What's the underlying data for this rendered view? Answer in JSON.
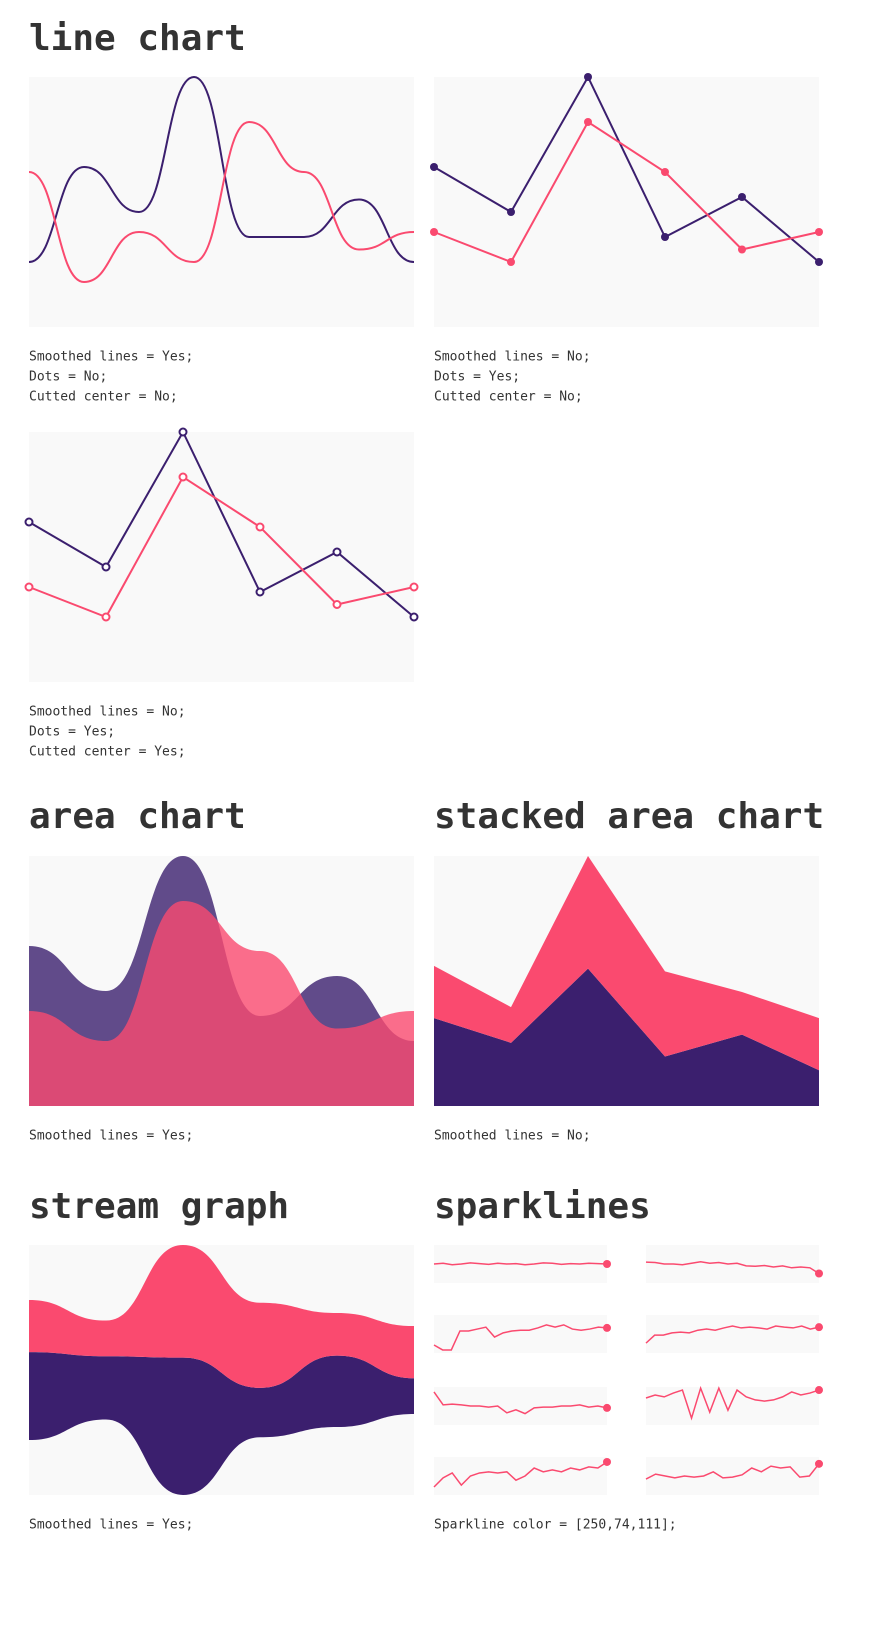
{
  "headings": [
    "line chart",
    "area chart",
    "stacked area chart",
    "stream graph",
    "sparklines"
  ],
  "sparklines_note": "Sparkline color = [250,74,111];",
  "chart_data": [
    {
      "type": "line",
      "smooth": true,
      "dots": "none",
      "x": [
        0,
        1,
        2,
        3,
        4,
        5,
        6,
        7
      ],
      "xlim": [
        0,
        7
      ],
      "ylim": [
        0,
        100
      ],
      "series": [
        {
          "color": "#3b1f6e",
          "values": [
            26,
            64,
            46,
            100,
            36,
            36,
            51,
            26
          ]
        },
        {
          "color": "#fa4a6f",
          "values": [
            62,
            18,
            38,
            26,
            82,
            62,
            31,
            38
          ]
        }
      ],
      "notes": [
        "Smoothed lines = Yes;",
        "Dots = No;",
        "Cutted center = No;"
      ]
    },
    {
      "type": "line",
      "smooth": false,
      "dots": "filled",
      "x": [
        0,
        1,
        2,
        3,
        4,
        5
      ],
      "xlim": [
        0,
        5
      ],
      "ylim": [
        0,
        100
      ],
      "series": [
        {
          "color": "#3b1f6e",
          "values": [
            64,
            46,
            100,
            36,
            52,
            26
          ]
        },
        {
          "color": "#fa4a6f",
          "values": [
            38,
            26,
            82,
            62,
            31,
            38
          ]
        }
      ],
      "notes": [
        "Smoothed lines = No;",
        "Dots = Yes;",
        "Cutted center = No;"
      ]
    },
    {
      "type": "line",
      "smooth": false,
      "dots": "hollow",
      "x": [
        0,
        1,
        2,
        3,
        4,
        5
      ],
      "xlim": [
        0,
        5
      ],
      "ylim": [
        0,
        100
      ],
      "series": [
        {
          "color": "#3b1f6e",
          "values": [
            64,
            46,
            100,
            36,
            52,
            26
          ]
        },
        {
          "color": "#fa4a6f",
          "values": [
            38,
            26,
            82,
            62,
            31,
            38
          ]
        }
      ],
      "notes": [
        "Smoothed lines = No;",
        "Dots = Yes;",
        "Cutted center = Yes;"
      ]
    },
    {
      "type": "area",
      "smooth": true,
      "stacked": false,
      "opacity": 0.8,
      "ylim": [
        0,
        100
      ],
      "series": [
        {
          "color": "#3b1f6e",
          "values": [
            64,
            46,
            100,
            36,
            52,
            26
          ]
        },
        {
          "color": "#fa4a6f",
          "values": [
            38,
            26,
            82,
            62,
            31,
            38
          ]
        }
      ],
      "notes": [
        "Smoothed lines = Yes;"
      ]
    },
    {
      "type": "area",
      "smooth": false,
      "stacked": true,
      "opacity": 1,
      "ylim": [
        0,
        182
      ],
      "series": [
        {
          "color": "#3b1f6e",
          "values": [
            64,
            46,
            100,
            36,
            52,
            26
          ]
        },
        {
          "color": "#fa4a6f",
          "values": [
            38,
            26,
            82,
            62,
            31,
            38
          ]
        }
      ],
      "notes": [
        "Smoothed lines = No;"
      ]
    },
    {
      "type": "stream",
      "smooth": true,
      "ylim": [
        0,
        182
      ],
      "series": [
        {
          "color": "#3b1f6e",
          "values": [
            64,
            46,
            100,
            36,
            52,
            26
          ]
        },
        {
          "color": "#fa4a6f",
          "values": [
            38,
            26,
            82,
            62,
            31,
            38
          ]
        }
      ],
      "notes": [
        "Smoothed lines = Yes;"
      ]
    },
    {
      "type": "sparkline",
      "color": "#fa4a6f",
      "ylim": [
        0,
        100
      ],
      "values": [
        50,
        52,
        48,
        50,
        53,
        51,
        49,
        52,
        50,
        51,
        48,
        50,
        53,
        52,
        49,
        51,
        50,
        52,
        51,
        50
      ]
    },
    {
      "type": "sparkline",
      "color": "#fa4a6f",
      "ylim": [
        0,
        100
      ],
      "values": [
        55,
        54,
        50,
        50,
        48,
        52,
        56,
        52,
        54,
        50,
        52,
        45,
        44,
        46,
        42,
        45,
        40,
        42,
        40,
        25
      ]
    },
    {
      "type": "sparkline",
      "color": "#fa4a6f",
      "ylim": [
        0,
        100
      ],
      "values": [
        21,
        8,
        8,
        58,
        58,
        63,
        68,
        42,
        53,
        58,
        60,
        60,
        66,
        74,
        68,
        74,
        63,
        60,
        63,
        68,
        66
      ]
    },
    {
      "type": "sparkline",
      "color": "#fa4a6f",
      "ylim": [
        0,
        100
      ],
      "values": [
        26,
        47,
        47,
        53,
        55,
        53,
        60,
        63,
        60,
        66,
        71,
        66,
        68,
        66,
        63,
        71,
        68,
        66,
        71,
        63,
        68
      ]
    },
    {
      "type": "sparkline",
      "color": "#fa4a6f",
      "ylim": [
        0,
        100
      ],
      "values": [
        87,
        53,
        55,
        53,
        50,
        50,
        47,
        50,
        32,
        40,
        30,
        45,
        47,
        47,
        50,
        50,
        53,
        47,
        50,
        45
      ]
    },
    {
      "type": "sparkline",
      "color": "#fa4a6f",
      "ylim": [
        0,
        100
      ],
      "values": [
        71,
        79,
        74,
        84,
        92,
        18,
        97,
        34,
        97,
        39,
        92,
        74,
        66,
        63,
        66,
        74,
        87,
        79,
        84,
        92
      ]
    },
    {
      "type": "sparkline",
      "color": "#fa4a6f",
      "ylim": [
        0,
        100
      ],
      "values": [
        21,
        45,
        58,
        26,
        50,
        58,
        61,
        58,
        61,
        39,
        50,
        71,
        61,
        66,
        61,
        71,
        66,
        74,
        71,
        87
      ]
    },
    {
      "type": "sparkline",
      "color": "#fa4a6f",
      "ylim": [
        0,
        100
      ],
      "values": [
        42,
        55,
        50,
        45,
        50,
        47,
        50,
        61,
        45,
        47,
        53,
        71,
        61,
        76,
        71,
        74,
        47,
        50,
        82
      ]
    }
  ]
}
